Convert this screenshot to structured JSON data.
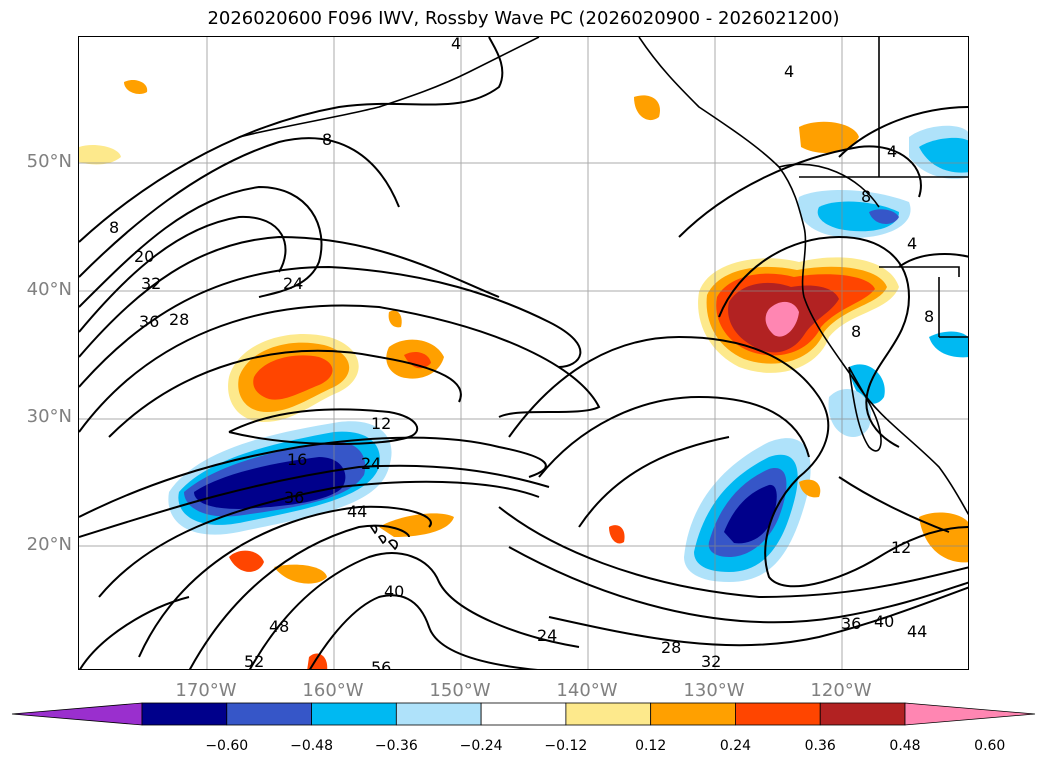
{
  "title": "2026020600 F096 IWV, Rossby Wave PC (2026020900 - 2026021200)",
  "lat_labels": [
    "50°N",
    "40°N",
    "30°N",
    "20°N"
  ],
  "lon_labels": [
    "170°W",
    "160°W",
    "150°W",
    "140°W",
    "130°W",
    "120°W"
  ],
  "colorbar": {
    "colors": [
      "#9a2fce",
      "#00008b",
      "#3656c8",
      "#00b9f2",
      "#afe2fa",
      "#ffffff",
      "#fde98c",
      "#ffa000",
      "#ff4500",
      "#b22222",
      "#ff86b2"
    ],
    "ticks": [
      "−0.60",
      "−0.48",
      "−0.36",
      "−0.24",
      "−0.12",
      "0.12",
      "0.24",
      "0.36",
      "0.48",
      "0.60"
    ]
  },
  "contour_labels": [
    "4",
    "4",
    "4",
    "4",
    "8",
    "8",
    "8",
    "8",
    "8",
    "20",
    "32",
    "36",
    "28",
    "24",
    "12",
    "16",
    "24",
    "36",
    "44",
    "40",
    "48",
    "52",
    "56",
    "24",
    "28",
    "32",
    "36",
    "40",
    "44",
    "12"
  ]
}
